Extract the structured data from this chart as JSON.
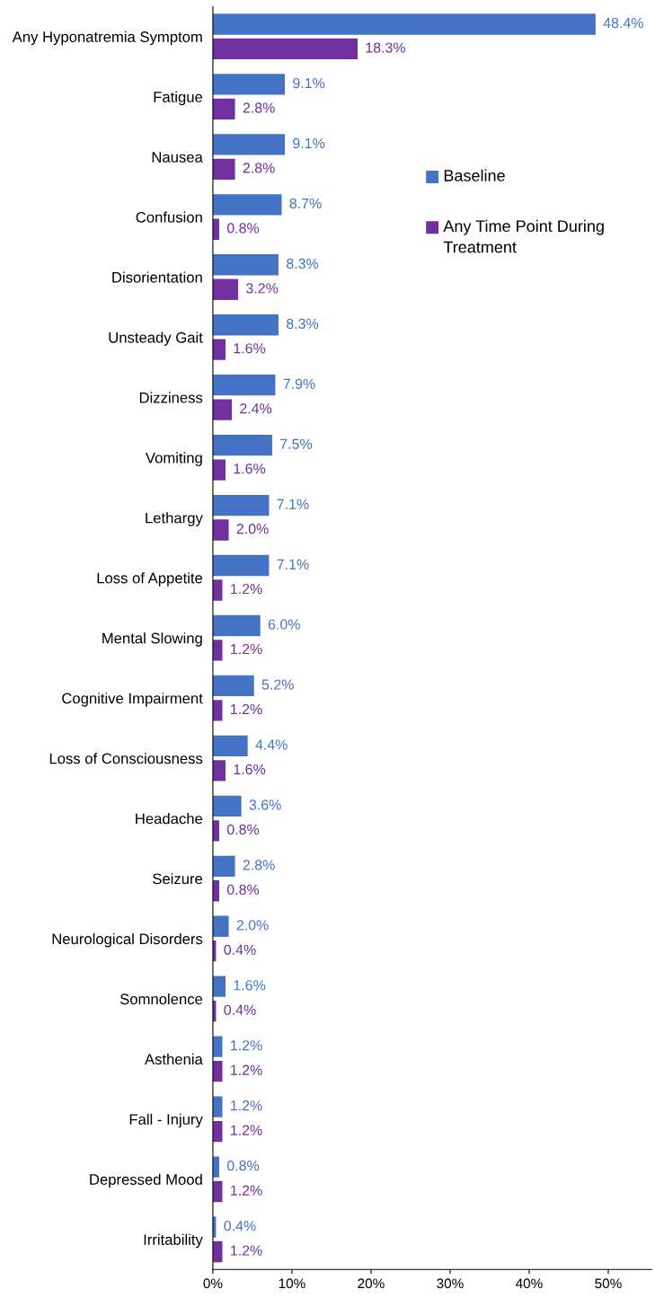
{
  "chart_data": {
    "type": "bar",
    "orientation": "horizontal",
    "categories": [
      "Any Hyponatremia Symptom",
      "Fatigue",
      "Nausea",
      "Confusion",
      "Disorientation",
      "Unsteady Gait",
      "Dizziness",
      "Vomiting",
      "Lethargy",
      "Loss of Appetite",
      "Mental Slowing",
      "Cognitive Impairment",
      "Loss of Consciousness",
      "Headache",
      "Seizure",
      "Neurological Disorders",
      "Somnolence",
      "Asthenia",
      "Fall - Injury",
      "Depressed Mood",
      "Irritability"
    ],
    "series": [
      {
        "name": "Baseline",
        "color": "#4472c4",
        "values": [
          48.4,
          9.1,
          9.1,
          8.7,
          8.3,
          8.3,
          7.9,
          7.5,
          7.1,
          7.1,
          6.0,
          5.2,
          4.4,
          3.6,
          2.8,
          2.0,
          1.6,
          1.2,
          1.2,
          0.8,
          0.4
        ],
        "value_labels": [
          "48.4%",
          "9.1%",
          "9.1%",
          "8.7%",
          "8.3%",
          "8.3%",
          "7.9%",
          "7.5%",
          "7.1%",
          "7.1%",
          "6.0%",
          "5.2%",
          "4.4%",
          "3.6%",
          "2.8%",
          "2.0%",
          "1.6%",
          "1.2%",
          "1.2%",
          "0.8%",
          "0.4%"
        ]
      },
      {
        "name": "Any Time Point During Treatment",
        "color": "#7030a0",
        "values": [
          18.3,
          2.8,
          2.8,
          0.8,
          3.2,
          1.6,
          2.4,
          1.6,
          2.0,
          1.2,
          1.2,
          1.2,
          1.6,
          0.8,
          0.8,
          0.4,
          0.4,
          1.2,
          1.2,
          1.2,
          1.2
        ],
        "value_labels": [
          "18.3%",
          "2.8%",
          "2.8%",
          "0.8%",
          "3.2%",
          "1.6%",
          "2.4%",
          "1.6%",
          "2.0%",
          "1.2%",
          "1.2%",
          "1.2%",
          "1.6%",
          "0.8%",
          "0.8%",
          "0.4%",
          "0.4%",
          "1.2%",
          "1.2%",
          "1.2%",
          "1.2%"
        ]
      }
    ],
    "xlim": [
      0,
      55.5
    ],
    "xticks": [
      {
        "value": 0,
        "label": "0%"
      },
      {
        "value": 10,
        "label": "10%"
      },
      {
        "value": 20,
        "label": "20%"
      },
      {
        "value": 30,
        "label": "30%"
      },
      {
        "value": 40,
        "label": "40%"
      },
      {
        "value": 50,
        "label": "50%"
      }
    ],
    "grid": false,
    "legend": "right"
  }
}
